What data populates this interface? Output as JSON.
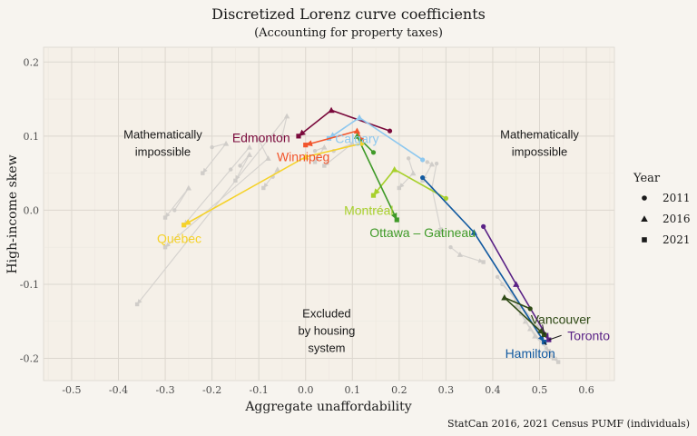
{
  "chart_data": {
    "type": "scatter",
    "title": "Discretized Lorenz curve coefficients",
    "subtitle": "(Accounting for property taxes)",
    "xlabel": "Aggregate unaffordability",
    "ylabel": "High-income skew",
    "caption": "StatCan 2016, 2021 Census PUMF (individuals)",
    "xlim": [
      -0.56,
      0.66
    ],
    "ylim": [
      -0.23,
      0.22
    ],
    "x_ticks": [
      "-0.5",
      "-0.4",
      "-0.3",
      "-0.2",
      "-0.1",
      "0.0",
      "0.1",
      "0.2",
      "0.3",
      "0.4",
      "0.5",
      "0.6"
    ],
    "x_tick_values": [
      -0.5,
      -0.4,
      -0.3,
      -0.2,
      -0.1,
      0.0,
      0.1,
      0.2,
      0.3,
      0.4,
      0.5,
      0.6
    ],
    "y_ticks": [
      "0.2",
      "0.1",
      "0.0",
      "-0.1",
      "-0.2"
    ],
    "y_tick_values": [
      0.2,
      0.1,
      0.0,
      -0.1,
      -0.2
    ],
    "grid": true,
    "legend": {
      "title": "Year",
      "position": "right",
      "entries": [
        {
          "label": "2011",
          "shape": "circle"
        },
        {
          "label": "2016",
          "shape": "triangle"
        },
        {
          "label": "2021",
          "shape": "square"
        }
      ]
    },
    "annotations": [
      {
        "lines": [
          "Mathematically",
          "impossible"
        ],
        "x": -0.305,
        "y": 0.097
      },
      {
        "lines": [
          "Mathematically",
          "impossible"
        ],
        "x": 0.5,
        "y": 0.097
      },
      {
        "lines": [
          "Excluded",
          "by housing",
          "system"
        ],
        "x": 0.045,
        "y": -0.145
      }
    ],
    "background_series": [
      {
        "points": [
          [
            -0.05,
            0.1
          ],
          [
            -0.04,
            0.127
          ],
          [
            -0.36,
            -0.127
          ]
        ]
      },
      {
        "points": [
          [
            -0.1,
            0.095
          ],
          [
            -0.08,
            0.07
          ],
          [
            -0.3,
            -0.05
          ]
        ]
      },
      {
        "points": [
          [
            -0.14,
            0.06
          ],
          [
            -0.12,
            0.075
          ],
          [
            -0.15,
            0.04
          ]
        ]
      },
      {
        "points": [
          [
            -0.07,
            0.045
          ],
          [
            -0.06,
            0.055
          ],
          [
            -0.09,
            0.03
          ]
        ]
      },
      {
        "points": [
          [
            0.02,
            0.08
          ],
          [
            0.04,
            0.085
          ],
          [
            0.02,
            0.065
          ]
        ]
      },
      {
        "points": [
          [
            0.22,
            0.07
          ],
          [
            0.23,
            0.05
          ],
          [
            0.2,
            0.03
          ]
        ]
      },
      {
        "points": [
          [
            0.26,
            0.065
          ],
          [
            0.27,
            0.062
          ],
          [
            0.25,
            0.04
          ]
        ]
      },
      {
        "points": [
          [
            0.28,
            0.063
          ],
          [
            0.27,
            0.03
          ],
          [
            0.29,
            -0.03
          ]
        ]
      },
      {
        "points": [
          [
            0.31,
            -0.05
          ],
          [
            0.33,
            -0.06
          ],
          [
            0.38,
            -0.07
          ]
        ]
      },
      {
        "points": [
          [
            0.42,
            -0.1
          ],
          [
            0.45,
            -0.12
          ],
          [
            0.5,
            -0.16
          ]
        ]
      },
      {
        "points": [
          [
            0.44,
            -0.11
          ],
          [
            0.47,
            -0.15
          ],
          [
            0.53,
            -0.2
          ]
        ]
      },
      {
        "points": [
          [
            0.41,
            -0.09
          ],
          [
            0.46,
            -0.13
          ],
          [
            0.51,
            -0.18
          ]
        ]
      },
      {
        "points": [
          [
            0.45,
            -0.13
          ],
          [
            0.48,
            -0.16
          ],
          [
            0.54,
            -0.205
          ]
        ]
      },
      {
        "points": [
          [
            0.46,
            -0.14
          ],
          [
            0.49,
            -0.17
          ],
          [
            0.52,
            -0.19
          ]
        ]
      },
      {
        "points": [
          [
            -0.2,
            0.085
          ],
          [
            -0.17,
            0.09
          ],
          [
            -0.22,
            0.05
          ]
        ]
      },
      {
        "points": [
          [
            -0.28,
            0.0
          ],
          [
            -0.25,
            0.03
          ],
          [
            -0.3,
            -0.01
          ]
        ]
      },
      {
        "points": [
          [
            -0.16,
            0.055
          ],
          [
            -0.12,
            0.085
          ],
          [
            -0.26,
            -0.02
          ]
        ]
      },
      {
        "points": [
          [
            0.06,
            0.08
          ],
          [
            0.1,
            0.09
          ],
          [
            0.04,
            0.06
          ]
        ]
      }
    ],
    "series": [
      {
        "name": "Edmonton",
        "color": "#7a0a3c",
        "points": [
          [
            0.18,
            0.107
          ],
          [
            0.055,
            0.135
          ],
          [
            -0.015,
            0.1
          ]
        ]
      },
      {
        "name": "Calgary",
        "color": "#8ec8ef",
        "points": [
          [
            0.25,
            0.068
          ],
          [
            0.115,
            0.125
          ],
          [
            0.05,
            0.097
          ]
        ]
      },
      {
        "name": "Winnipeg",
        "color": "#f2552c",
        "points": [
          [
            0.12,
            0.095
          ],
          [
            0.11,
            0.107
          ],
          [
            0.0,
            0.088
          ]
        ]
      },
      {
        "name": "Montréal",
        "color": "#a8d02c",
        "points": [
          [
            0.3,
            0.016
          ],
          [
            0.19,
            0.055
          ],
          [
            0.145,
            0.02
          ]
        ]
      },
      {
        "name": "Ottawa – Gatineau",
        "color": "#3f9a28",
        "points": [
          [
            0.145,
            0.078
          ],
          [
            0.11,
            0.1
          ],
          [
            0.195,
            -0.013
          ]
        ]
      },
      {
        "name": "Québec",
        "color": "#f5d22a",
        "points": [
          [
            0.12,
            0.09
          ],
          [
            0.0,
            0.072
          ],
          [
            -0.26,
            -0.02
          ]
        ]
      },
      {
        "name": "Hamilton",
        "color": "#125aa0",
        "points": [
          [
            0.25,
            0.044
          ],
          [
            0.36,
            -0.03
          ],
          [
            0.51,
            -0.178
          ]
        ]
      },
      {
        "name": "Toronto",
        "color": "#5a2286",
        "points": [
          [
            0.38,
            -0.022
          ],
          [
            0.45,
            -0.1
          ],
          [
            0.52,
            -0.175
          ]
        ]
      },
      {
        "name": "Vancouver",
        "color": "#2f4a16",
        "points": [
          [
            0.48,
            -0.133
          ],
          [
            0.425,
            -0.118
          ],
          [
            0.51,
            -0.168
          ]
        ]
      }
    ],
    "labels": [
      {
        "text": "Edmonton",
        "color": "#7a0a3c",
        "x": -0.095,
        "y": 0.098
      },
      {
        "text": "Calgary",
        "color": "#8ec8ef",
        "x": 0.11,
        "y": 0.097
      },
      {
        "text": "Winnipeg",
        "color": "#f2552c",
        "x": -0.005,
        "y": 0.072
      },
      {
        "text": "Montréal",
        "color": "#a8d02c",
        "x": 0.135,
        "y": 0.0
      },
      {
        "text": "Ottawa – Gatineau",
        "color": "#3f9a28",
        "x": 0.25,
        "y": -0.03
      },
      {
        "text": "Québec",
        "color": "#f5d22a",
        "x": -0.27,
        "y": -0.038
      },
      {
        "text": "Hamilton",
        "color": "#125aa0",
        "x": 0.48,
        "y": -0.193
      },
      {
        "text": "Toronto",
        "color": "#5a2286",
        "x": 0.605,
        "y": -0.169
      },
      {
        "text": "Vancouver",
        "color": "#2f4a16",
        "x": 0.545,
        "y": -0.147
      }
    ]
  }
}
